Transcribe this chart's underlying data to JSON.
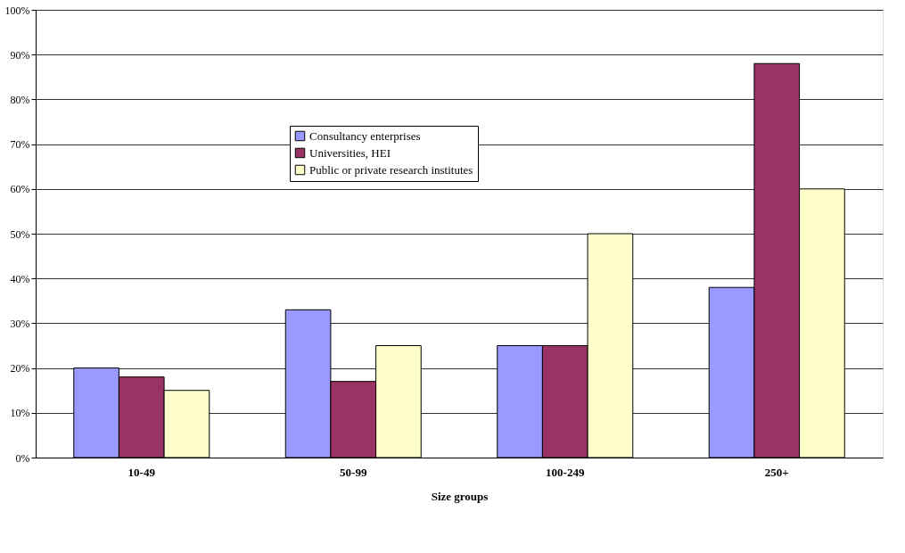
{
  "chart_data": {
    "type": "bar",
    "xlabel": "Size groups",
    "categories": [
      "10-49",
      "50-99",
      "100-249",
      "250+"
    ],
    "series": [
      {
        "name": "Consultancy enterprises",
        "color": "#9999ff",
        "values": [
          20,
          33,
          25,
          38
        ]
      },
      {
        "name": "Universities, HEI",
        "color": "#993366",
        "values": [
          18,
          17,
          25,
          88
        ]
      },
      {
        "name": "Public or private research institutes",
        "color": "#ffffcc",
        "values": [
          15,
          25,
          50,
          60
        ]
      }
    ],
    "ylim": [
      0,
      100
    ],
    "yticks": [
      {
        "value": 0,
        "label": "0%"
      },
      {
        "value": 10,
        "label": "10%"
      },
      {
        "value": 20,
        "label": "20%"
      },
      {
        "value": 30,
        "label": "30%"
      },
      {
        "value": 40,
        "label": "40%"
      },
      {
        "value": 50,
        "label": "50%"
      },
      {
        "value": 60,
        "label": "60%"
      },
      {
        "value": 70,
        "label": "70%"
      },
      {
        "value": 80,
        "label": "80%"
      },
      {
        "value": 90,
        "label": "90%"
      },
      {
        "value": 100,
        "label": "100%"
      }
    ],
    "grid": "y",
    "legend": "top"
  }
}
